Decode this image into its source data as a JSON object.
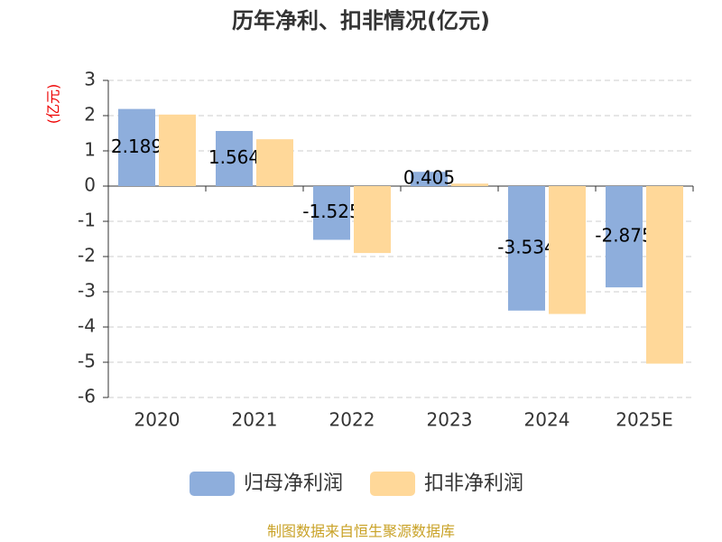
{
  "chart_data": {
    "type": "bar",
    "title": "历年净利、扣非情况(亿元)",
    "y_label": "(亿元)",
    "categories": [
      "2020",
      "2021",
      "2022",
      "2023",
      "2024",
      "2025E"
    ],
    "series": [
      {
        "name": "归母净利润",
        "color": "#8eaedc",
        "values": [
          2.189,
          1.564,
          -1.525,
          0.405,
          -3.534,
          -2.875
        ]
      },
      {
        "name": "扣非净利润",
        "color": "#ffd899",
        "values": [
          2.03,
          1.33,
          -1.9,
          0.07,
          -3.63,
          -5.04
        ]
      }
    ],
    "ylim": [
      -6,
      3
    ],
    "yticks": [
      -6,
      -5,
      -4,
      -3,
      -2,
      -1,
      0,
      1,
      2,
      3
    ],
    "grid": true,
    "source": "制图数据来自恒生聚源数据库"
  }
}
